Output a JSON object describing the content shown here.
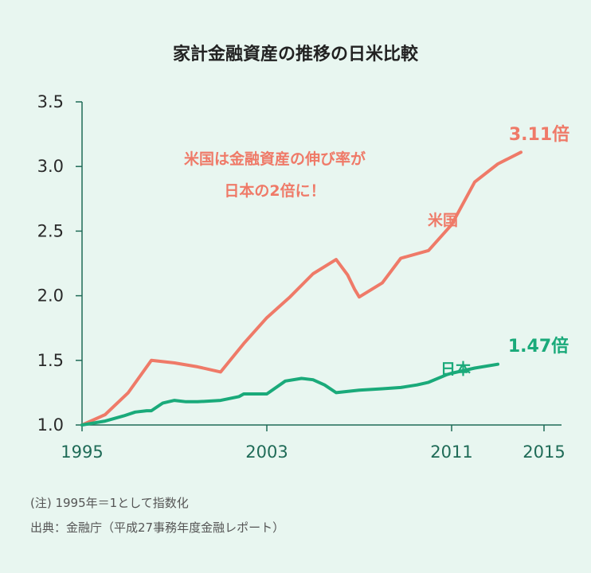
{
  "chart_data": {
    "type": "line",
    "title": "家計金融資産の推移の日米比較",
    "ylim": [
      1.0,
      3.5
    ],
    "yticks": [
      "1.0",
      "1.5",
      "2.0",
      "2.5",
      "3.0",
      "3.5"
    ],
    "xlim": [
      1995,
      2016
    ],
    "xticks": [
      "1995",
      "2003",
      "2011",
      "2015"
    ],
    "grid": false,
    "series": [
      {
        "name": "米国",
        "color": "#ef7a68",
        "points": [
          [
            1995,
            1.0
          ],
          [
            1996,
            1.08
          ],
          [
            1997,
            1.25
          ],
          [
            1998,
            1.5
          ],
          [
            1999,
            1.48
          ],
          [
            2000,
            1.45
          ],
          [
            2001,
            1.41
          ],
          [
            2002,
            1.63
          ],
          [
            2003,
            1.83
          ],
          [
            2004,
            1.99
          ],
          [
            2005,
            2.17
          ],
          [
            2006,
            2.28
          ],
          [
            2006.5,
            2.16
          ],
          [
            2006.8,
            2.05
          ],
          [
            2007,
            1.99
          ],
          [
            2008,
            2.1
          ],
          [
            2008.8,
            2.29
          ],
          [
            2010,
            2.35
          ],
          [
            2011,
            2.55
          ],
          [
            2012,
            2.88
          ],
          [
            2013,
            3.02
          ],
          [
            2014,
            3.11
          ]
        ],
        "end_label": "3.11倍"
      },
      {
        "name": "日本",
        "color": "#1aaa7a",
        "points": [
          [
            1995,
            1.0
          ],
          [
            1996,
            1.03
          ],
          [
            1996.8,
            1.07
          ],
          [
            1997.3,
            1.1
          ],
          [
            1997.8,
            1.11
          ],
          [
            1998,
            1.11
          ],
          [
            1998.5,
            1.17
          ],
          [
            1999,
            1.19
          ],
          [
            1999.5,
            1.18
          ],
          [
            2000,
            1.18
          ],
          [
            2001,
            1.19
          ],
          [
            2001.8,
            1.22
          ],
          [
            2002,
            1.24
          ],
          [
            2003,
            1.24
          ],
          [
            2003.8,
            1.34
          ],
          [
            2004.5,
            1.36
          ],
          [
            2005,
            1.35
          ],
          [
            2005.5,
            1.31
          ],
          [
            2006,
            1.25
          ],
          [
            2007,
            1.27
          ],
          [
            2008,
            1.28
          ],
          [
            2008.8,
            1.29
          ],
          [
            2009.5,
            1.31
          ],
          [
            2010,
            1.33
          ],
          [
            2010.8,
            1.39
          ],
          [
            2011,
            1.4
          ],
          [
            2012,
            1.44
          ],
          [
            2013,
            1.47
          ]
        ],
        "end_label": "1.47倍"
      }
    ],
    "annotations": [
      "米国は金融資産の伸び率が",
      "日本の2倍に！"
    ]
  },
  "notes": [
    "(注) 1995年＝1として指数化",
    "出典：金融庁（平成27事務年度金融レポート）"
  ]
}
